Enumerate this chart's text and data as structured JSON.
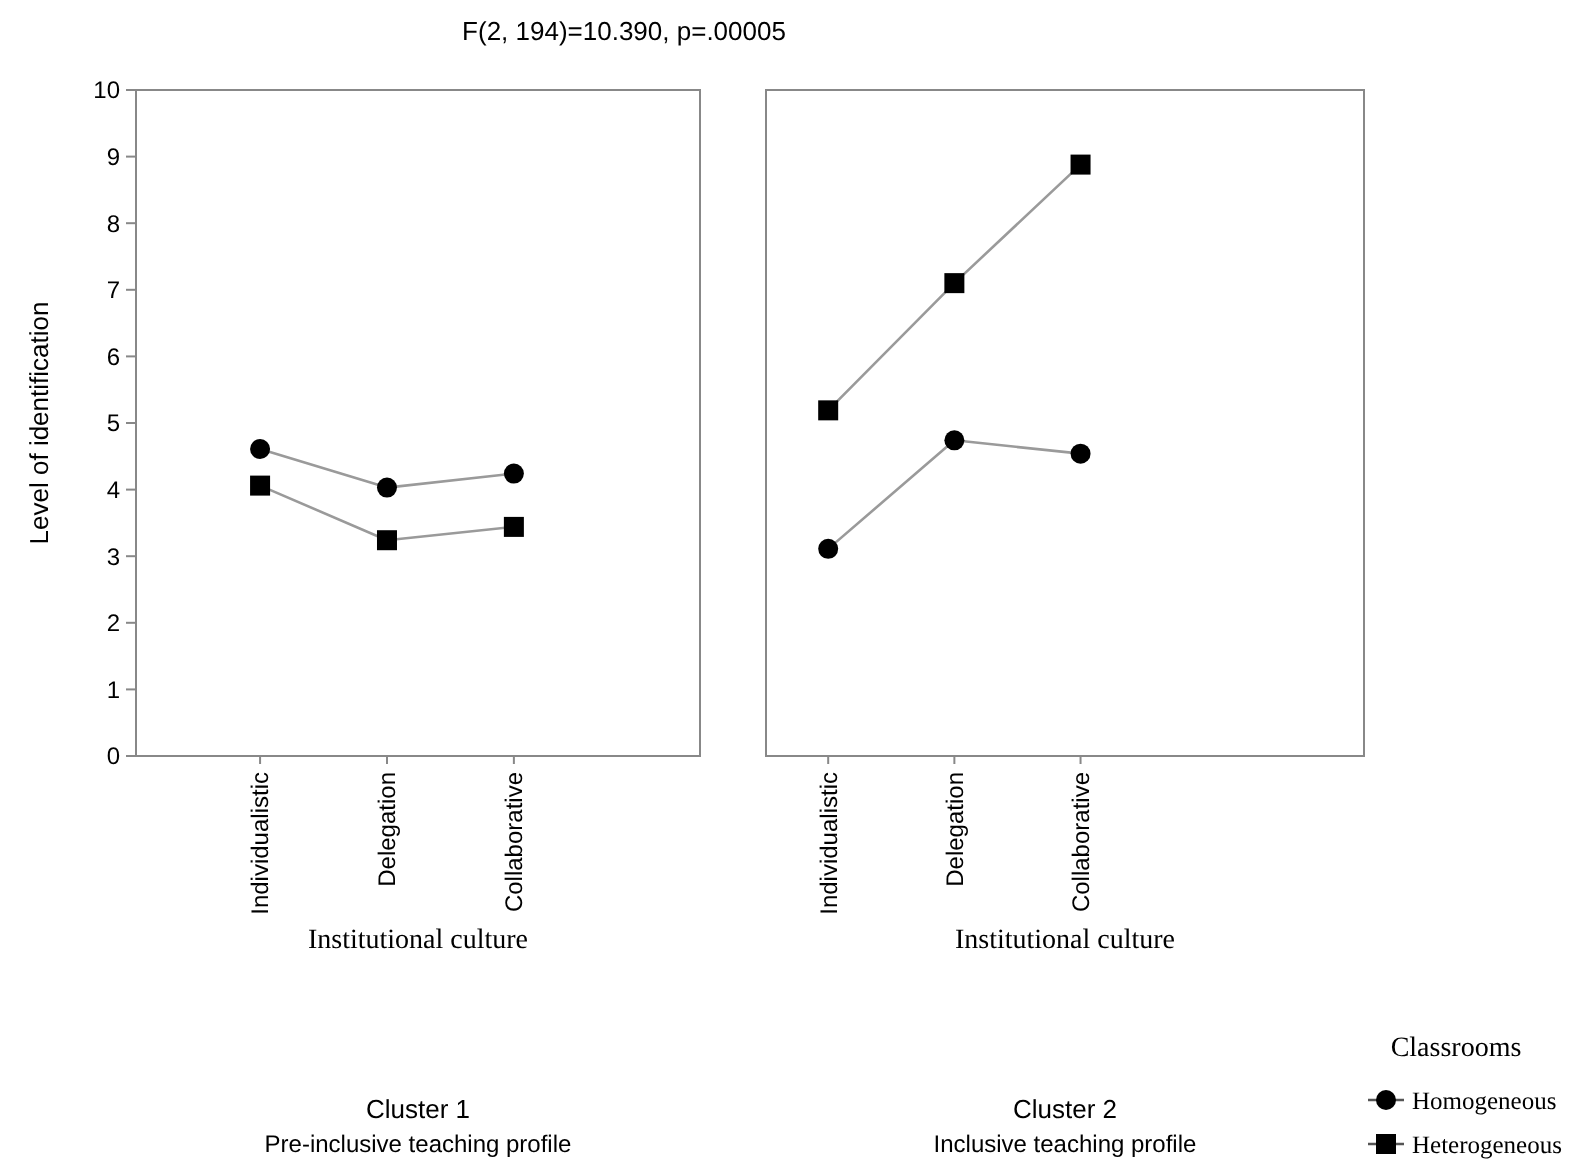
{
  "chart_data": [
    {
      "type": "line",
      "title": "F(2, 194)=10.390, p=.00005",
      "xlabel": "Institutional culture",
      "ylabel": "Level of identification",
      "categories": [
        "Individualistic",
        "Delegation",
        "Collaborative"
      ],
      "ylim": [
        0,
        10
      ],
      "yticks": [
        0,
        1,
        2,
        3,
        4,
        5,
        6,
        7,
        8,
        9,
        10
      ],
      "grid": false,
      "legend": false,
      "annotations": [
        "Cluster 1",
        "Pre-inclusive teaching profile"
      ],
      "series": [
        {
          "color": "#000000",
          "marker": "circle",
          "values": [
            4.61,
            4.03,
            4.24
          ]
        },
        {
          "color": "#000000",
          "marker": "square",
          "values": [
            4.06,
            3.24,
            3.44
          ]
        }
      ]
    },
    {
      "type": "line",
      "xlabel": "Institutional culture",
      "categories": [
        "Individualistic",
        "Delegation",
        "Collaborative"
      ],
      "ylim": [
        0,
        10
      ],
      "tick_labels": "x",
      "grid": false,
      "legend": "bottom right",
      "legend_title": "Classrooms",
      "annotations": [
        "Cluster 2",
        "Inclusive teaching profile"
      ],
      "series": [
        {
          "name": "Homogeneous",
          "color": "#000000",
          "marker": "circle",
          "values": [
            3.11,
            4.74,
            4.54
          ]
        },
        {
          "name": "Heterogeneous",
          "color": "#000000",
          "marker": "square",
          "values": [
            5.19,
            7.1,
            8.88
          ]
        }
      ]
    }
  ]
}
